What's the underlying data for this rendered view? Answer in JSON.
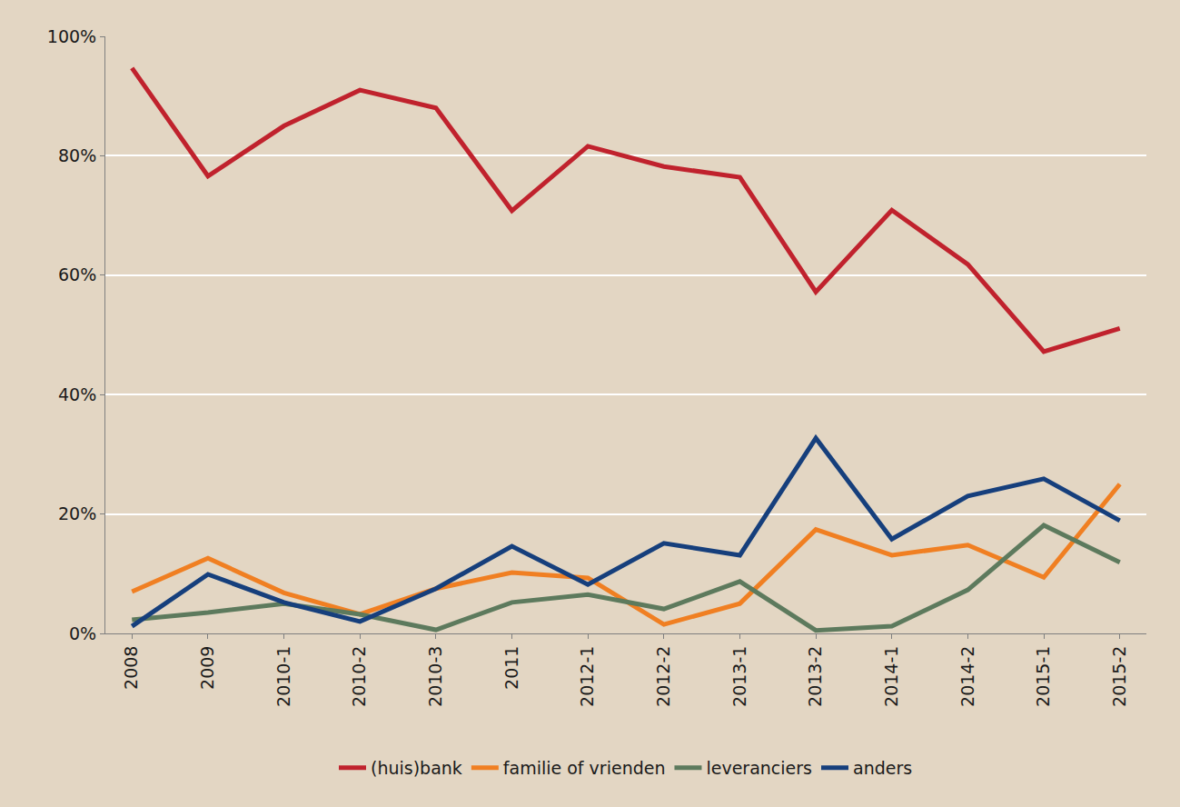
{
  "chart_data": {
    "type": "line",
    "categories": [
      "2008",
      "2009",
      "2010-1",
      "2010-2",
      "2010-3",
      "2011",
      "2012-1",
      "2012-2",
      "2013-1",
      "2013-2",
      "2014-1",
      "2014-2",
      "2015-1",
      "2015-2"
    ],
    "series": [
      {
        "name": "(huis)bank",
        "color": "#c0222d",
        "values": [
          94.7,
          76.6,
          85,
          91,
          88,
          70.8,
          81.6,
          78.2,
          76.4,
          57.2,
          70.9,
          61.8,
          47.2,
          51.1
        ]
      },
      {
        "name": "familie of vrienden",
        "color": "#f07f22",
        "values": [
          7,
          12.6,
          6.8,
          3.2,
          7.5,
          10.2,
          9.3,
          1.5,
          5,
          17.4,
          13.1,
          14.8,
          9.4,
          25
        ]
      },
      {
        "name": "leveranciers",
        "color": "#5d7a5d",
        "values": [
          2.3,
          3.5,
          5,
          3.2,
          0.6,
          5.2,
          6.5,
          4.1,
          8.7,
          0.5,
          1.2,
          7.3,
          18.1,
          11.9
        ]
      },
      {
        "name": "anders",
        "color": "#163f7c",
        "values": [
          1.2,
          9.9,
          5.2,
          2,
          7.5,
          14.6,
          8.2,
          15.1,
          13.1,
          32.7,
          15.8,
          23,
          25.9,
          18.9
        ]
      }
    ],
    "ylim": [
      0,
      100
    ],
    "yticks": [
      {
        "value": 0,
        "label": "0%"
      },
      {
        "value": 20,
        "label": "20%"
      },
      {
        "value": 40,
        "label": "40%"
      },
      {
        "value": 60,
        "label": "60%"
      },
      {
        "value": 80,
        "label": "80%"
      },
      {
        "value": 100,
        "label": "100%"
      }
    ],
    "grid": true,
    "legend": "bottom"
  }
}
